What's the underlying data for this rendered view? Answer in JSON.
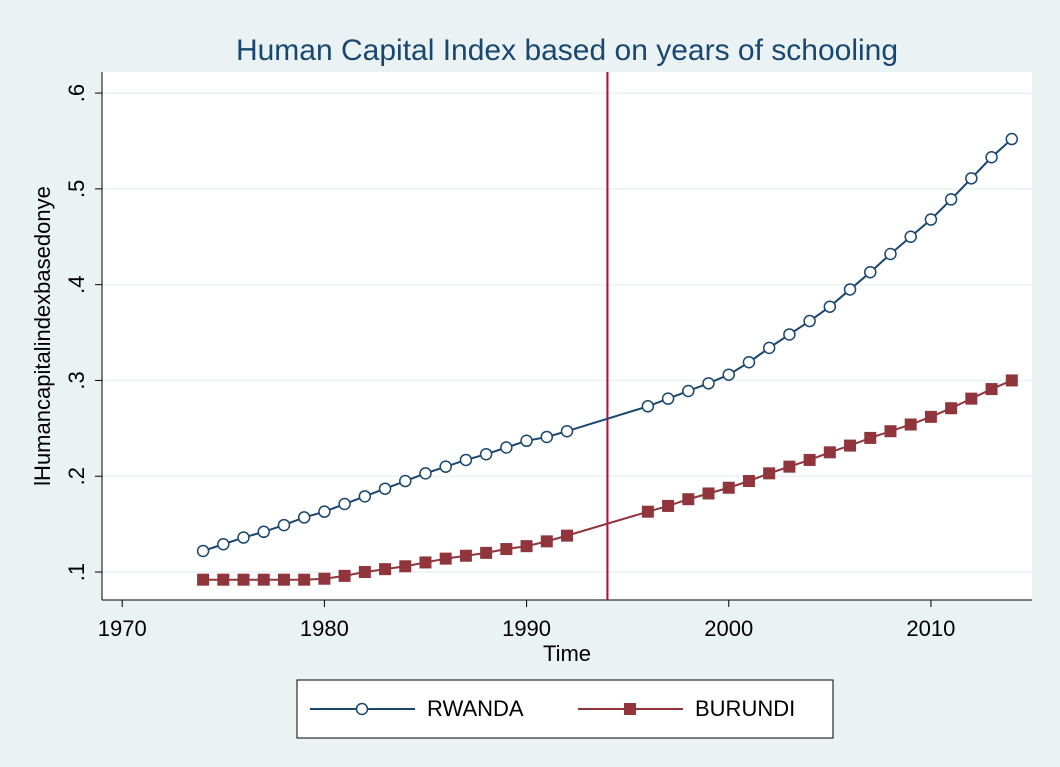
{
  "chart_data": {
    "type": "line",
    "title": "Human Capital Index based on years of schooling",
    "xlabel": "Time",
    "ylabel": "lHumancapitalindexbasedonye",
    "x": [
      1974,
      1975,
      1976,
      1977,
      1978,
      1979,
      1980,
      1981,
      1982,
      1983,
      1984,
      1985,
      1986,
      1987,
      1988,
      1989,
      1990,
      1991,
      1992,
      1996,
      1997,
      1998,
      1999,
      2000,
      2001,
      2002,
      2003,
      2004,
      2005,
      2006,
      2007,
      2008,
      2009,
      2010,
      2011,
      2012,
      2013,
      2014
    ],
    "series": [
      {
        "name": "RWANDA",
        "color": "#1a476f",
        "marker": "hollow-circle",
        "values": [
          0.122,
          0.129,
          0.136,
          0.142,
          0.149,
          0.157,
          0.163,
          0.171,
          0.179,
          0.187,
          0.195,
          0.203,
          0.21,
          0.217,
          0.223,
          0.23,
          0.237,
          0.241,
          0.247,
          0.273,
          0.281,
          0.289,
          0.297,
          0.306,
          0.319,
          0.334,
          0.348,
          0.362,
          0.377,
          0.395,
          0.413,
          0.432,
          0.45,
          0.468,
          0.489,
          0.511,
          0.533,
          0.552
        ]
      },
      {
        "name": "BURUNDI",
        "color": "#90353b",
        "marker": "square",
        "values": [
          0.092,
          0.092,
          0.092,
          0.092,
          0.092,
          0.092,
          0.093,
          0.096,
          0.1,
          0.103,
          0.106,
          0.11,
          0.114,
          0.117,
          0.12,
          0.124,
          0.127,
          0.132,
          0.138,
          0.163,
          0.169,
          0.176,
          0.182,
          0.188,
          0.195,
          0.203,
          0.21,
          0.217,
          0.225,
          0.232,
          0.24,
          0.247,
          0.254,
          0.262,
          0.271,
          0.281,
          0.291,
          0.3
        ]
      }
    ],
    "xlim": [
      1969,
      2015
    ],
    "xticks": [
      1970,
      1980,
      1990,
      2000,
      2010
    ],
    "ylim": [
      0.0708,
      0.622
    ],
    "yticks": [
      {
        "value": 0.1,
        "label": ".1"
      },
      {
        "value": 0.2,
        "label": ".2"
      },
      {
        "value": 0.3,
        "label": ".3"
      },
      {
        "value": 0.4,
        "label": ".4"
      },
      {
        "value": 0.5,
        "label": ".5"
      },
      {
        "value": 0.6,
        "label": ".6"
      }
    ],
    "grid": true,
    "reference_line": {
      "x": 1994,
      "color": "#c10534"
    },
    "legend": "bottom"
  }
}
